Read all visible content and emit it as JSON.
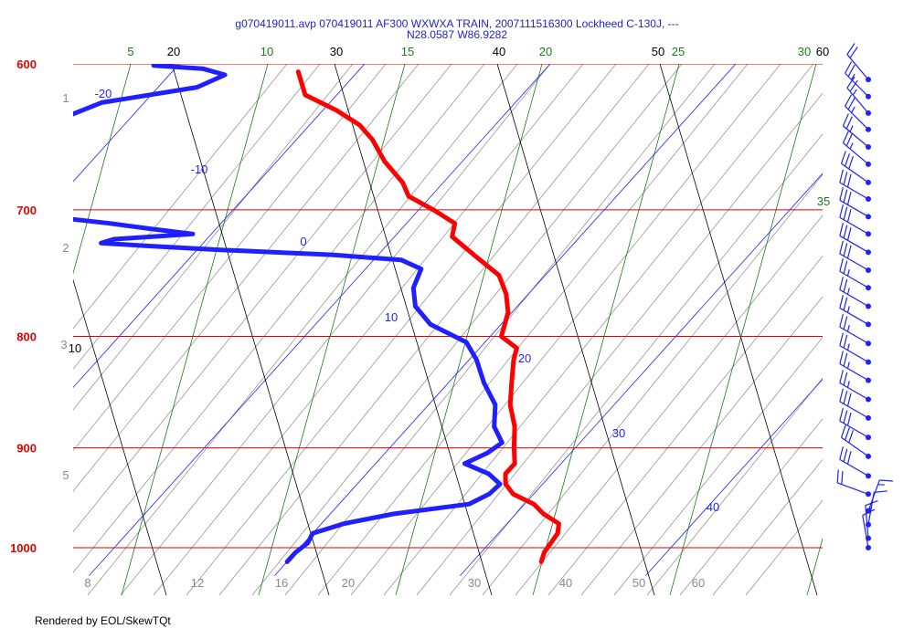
{
  "header": {
    "title_line1": "g070419011.avp 070419011 AF300 WXWXA TRAIN, 2007111516300 Lockheed C-130J, ---",
    "title_line2": "N28.0587 W86.9282"
  },
  "footer": {
    "text": "Rendered by EOL/SkewTQt"
  },
  "colors": {
    "isobar": "#e00000",
    "temperature": "#ff0000",
    "dewpoint": "#1f1fff",
    "isotherm": "#1f1fff",
    "dry_adiabat": "#000000",
    "moist_adiabat": "#1a7a1a",
    "mixing_ratio": "#8a8a8a",
    "wind": "#1f1fff",
    "title": "#1f1fd0"
  },
  "chart_data": {
    "type": "skew-t",
    "pressure_range_hpa": [
      1020,
      600
    ],
    "temperature_range_c": [
      -32,
      23
    ],
    "isobars": {
      "values": [
        600,
        700,
        800,
        900,
        1000
      ],
      "labels": [
        "600",
        "700",
        "800",
        "900",
        "1000"
      ]
    },
    "isotherms": {
      "values": [
        -20,
        -10,
        0,
        10,
        20,
        30,
        40
      ],
      "labels": [
        "-20",
        "-10",
        "0",
        "10",
        "20",
        "30",
        "40"
      ]
    },
    "dry_adiabats": {
      "labels": [
        "10",
        "20",
        "30",
        "40",
        "50",
        "60"
      ]
    },
    "moist_adiabats": {
      "labels": [
        "5",
        "10",
        "15",
        "20",
        "25",
        "30",
        "35"
      ]
    },
    "mixing_ratio": {
      "bottom_labels": [
        "8",
        "12",
        "16",
        "20",
        "30",
        "40",
        "50",
        "60"
      ],
      "left_labels": [
        "1",
        "2",
        "3",
        "5"
      ]
    },
    "series": [
      {
        "kind": "temperature",
        "points": [
          [
            1015,
            23.7
          ],
          [
            1005,
            23.4
          ],
          [
            995,
            23.3
          ],
          [
            985,
            23.2
          ],
          [
            975,
            22.8
          ],
          [
            965,
            21.5
          ],
          [
            955,
            20.5
          ],
          [
            945,
            18.9
          ],
          [
            935,
            18.0
          ],
          [
            925,
            17.5
          ],
          [
            915,
            17.5
          ],
          [
            900,
            16.7
          ],
          [
            880,
            15.7
          ],
          [
            860,
            14.4
          ],
          [
            840,
            13.4
          ],
          [
            820,
            12.4
          ],
          [
            810,
            12.0
          ],
          [
            800,
            10.6
          ],
          [
            790,
            10.2
          ],
          [
            780,
            9.8
          ],
          [
            765,
            8.8
          ],
          [
            750,
            7.5
          ],
          [
            735,
            5.3
          ],
          [
            720,
            3.1
          ],
          [
            710,
            2.6
          ],
          [
            700,
            0.8
          ],
          [
            690,
            -1.2
          ],
          [
            680,
            -2.2
          ],
          [
            665,
            -4.2
          ],
          [
            650,
            -5.9
          ],
          [
            640,
            -7.3
          ],
          [
            630,
            -9.3
          ],
          [
            620,
            -11.7
          ],
          [
            605,
            -13.2
          ]
        ]
      },
      {
        "kind": "dewpoint",
        "points": [
          [
            1015,
            10.0
          ],
          [
            1005,
            10.0
          ],
          [
            995,
            10.2
          ],
          [
            985,
            10.0
          ],
          [
            975,
            11.2
          ],
          [
            965,
            13.4
          ],
          [
            955,
            17.0
          ],
          [
            945,
            17.6
          ],
          [
            935,
            17.7
          ],
          [
            925,
            16.6
          ],
          [
            915,
            14.8
          ],
          [
            905,
            15.5
          ],
          [
            895,
            15.8
          ],
          [
            880,
            14.6
          ],
          [
            860,
            13.6
          ],
          [
            840,
            11.9
          ],
          [
            820,
            10.4
          ],
          [
            805,
            9.0
          ],
          [
            790,
            6.2
          ],
          [
            775,
            4.5
          ],
          [
            760,
            3.5
          ],
          [
            745,
            3.0
          ],
          [
            738,
            1.5
          ],
          [
            734,
            -2.5
          ],
          [
            730,
            -9.0
          ],
          [
            727,
            -13.0
          ],
          [
            725,
            -15.5
          ],
          [
            722,
            -15.0
          ],
          [
            718,
            -11.0
          ],
          [
            714,
            -13.6
          ],
          [
            710,
            -16.0
          ],
          [
            706,
            -18.9
          ],
          [
            701,
            -20.0
          ],
          [
            642,
            -23.9
          ],
          [
            635,
            -23.6
          ],
          [
            625,
            -22.3
          ],
          [
            615,
            -17.9
          ],
          [
            607,
            -17.0
          ],
          [
            603,
            -18.5
          ],
          [
            601,
            -21.3
          ]
        ]
      }
    ],
    "wind": {
      "units": "knots",
      "barbs": [
        {
          "p": 1000,
          "dir": 350,
          "spd": 10
        },
        {
          "p": 990,
          "dir": 355,
          "spd": 15
        },
        {
          "p": 976,
          "dir": 10,
          "spd": 10
        },
        {
          "p": 962,
          "dir": 20,
          "spd": 15
        },
        {
          "p": 945,
          "dir": 290,
          "spd": 20
        },
        {
          "p": 927,
          "dir": 300,
          "spd": 30
        },
        {
          "p": 908,
          "dir": 305,
          "spd": 30
        },
        {
          "p": 890,
          "dir": 300,
          "spd": 30
        },
        {
          "p": 872,
          "dir": 300,
          "spd": 30
        },
        {
          "p": 855,
          "dir": 300,
          "spd": 25
        },
        {
          "p": 838,
          "dir": 300,
          "spd": 25
        },
        {
          "p": 822,
          "dir": 300,
          "spd": 25
        },
        {
          "p": 806,
          "dir": 300,
          "spd": 25
        },
        {
          "p": 790,
          "dir": 300,
          "spd": 25
        },
        {
          "p": 775,
          "dir": 300,
          "spd": 25
        },
        {
          "p": 760,
          "dir": 300,
          "spd": 25
        },
        {
          "p": 746,
          "dir": 300,
          "spd": 30
        },
        {
          "p": 732,
          "dir": 300,
          "spd": 30
        },
        {
          "p": 718,
          "dir": 300,
          "spd": 30
        },
        {
          "p": 705,
          "dir": 300,
          "spd": 30
        },
        {
          "p": 692,
          "dir": 300,
          "spd": 30
        },
        {
          "p": 680,
          "dir": 305,
          "spd": 30
        },
        {
          "p": 667,
          "dir": 310,
          "spd": 25
        },
        {
          "p": 655,
          "dir": 310,
          "spd": 25
        },
        {
          "p": 643,
          "dir": 315,
          "spd": 25
        },
        {
          "p": 632,
          "dir": 320,
          "spd": 25
        },
        {
          "p": 621,
          "dir": 315,
          "spd": 25
        },
        {
          "p": 610,
          "dir": 320,
          "spd": 20
        }
      ]
    }
  }
}
